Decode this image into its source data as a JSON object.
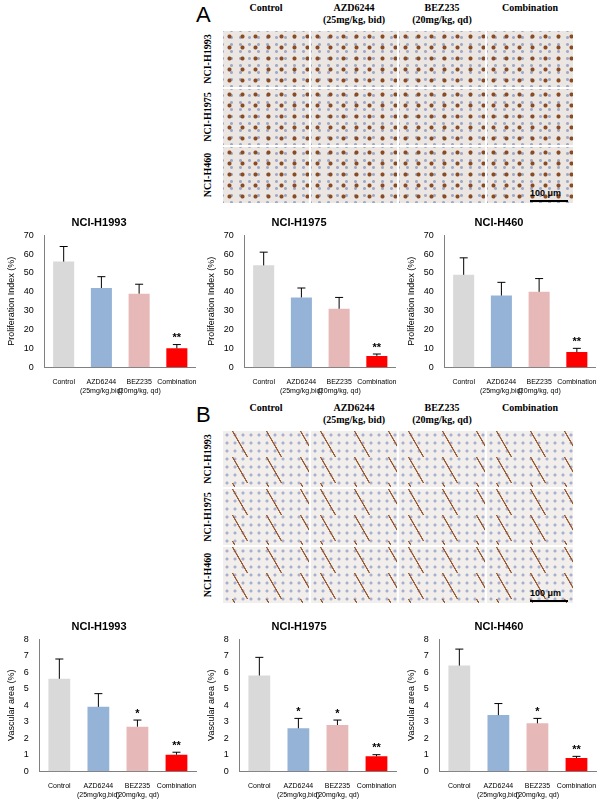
{
  "figure": {
    "panels": [
      {
        "label": "A",
        "columns": [
          "Control",
          "AZD6244 (25mg/kg, bid)",
          "BEZ235 (20mg/kg, qd)",
          "Combination"
        ],
        "rows": [
          "NCI-H1993",
          "NCI-H1975",
          "NCI-H460"
        ],
        "scale_bar": "100 μm"
      },
      {
        "label": "B",
        "columns": [
          "Control",
          "AZD6244 (25mg/kg, bid)",
          "BEZ235 (20mg/kg, qd)",
          "Combination"
        ],
        "rows": [
          "NCI-H1993",
          "NCI-H1975",
          "NCI-H460"
        ],
        "scale_bar": "100 μm"
      }
    ]
  },
  "chart_data": [
    {
      "type": "bar",
      "title": "NCI-H1993",
      "y_label": "Proliferation Index (%)",
      "categories": [
        "Control",
        "AZD6244 (25mg/kg,bid)",
        "BEZ235 (20mg/kg, qd)",
        "Combination"
      ],
      "values": [
        56,
        42,
        39,
        10
      ],
      "errors": [
        8,
        6,
        5,
        2
      ],
      "annotations": [
        null,
        null,
        null,
        "**"
      ],
      "colors": [
        "#d9d9d9",
        "#95b3d7",
        "#e6b9b8",
        "#ff0000"
      ],
      "ylim": [
        0,
        70
      ],
      "yticks": [
        0,
        10,
        20,
        30,
        40,
        50,
        60,
        70
      ],
      "grid": false
    },
    {
      "type": "bar",
      "title": "NCI-H1975",
      "y_label": "Proliferation Index (%)",
      "categories": [
        "Control",
        "AZD6244 (25mg/kg,bid)",
        "BEZ235 (20mg/kg, qd)",
        "Combination"
      ],
      "values": [
        54,
        37,
        31,
        6
      ],
      "errors": [
        7,
        5,
        6,
        1
      ],
      "annotations": [
        null,
        null,
        null,
        "**"
      ],
      "colors": [
        "#d9d9d9",
        "#95b3d7",
        "#e6b9b8",
        "#ff0000"
      ],
      "ylim": [
        0,
        70
      ],
      "yticks": [
        0,
        10,
        20,
        30,
        40,
        50,
        60,
        70
      ],
      "grid": false
    },
    {
      "type": "bar",
      "title": "NCI-H460",
      "y_label": "Proliferation Index (%)",
      "categories": [
        "Control",
        "AZD6244 (25mg/kg,bid)",
        "BEZ235 (20mg/kg, qd)",
        "Combination"
      ],
      "values": [
        49,
        38,
        40,
        8
      ],
      "errors": [
        9,
        7,
        7,
        2
      ],
      "annotations": [
        null,
        null,
        null,
        "**"
      ],
      "colors": [
        "#d9d9d9",
        "#95b3d7",
        "#e6b9b8",
        "#ff0000"
      ],
      "ylim": [
        0,
        70
      ],
      "yticks": [
        0,
        10,
        20,
        30,
        40,
        50,
        60,
        70
      ],
      "grid": false
    },
    {
      "type": "bar",
      "title": "NCI-H1993",
      "y_label": "Vascular area (%)",
      "categories": [
        "Control",
        "AZD6244 (25mg/kg,bid)",
        "BEZ235 (20mg/kg, qd)",
        "Combination"
      ],
      "values": [
        5.6,
        3.9,
        2.7,
        1.0
      ],
      "errors": [
        1.2,
        0.8,
        0.4,
        0.15
      ],
      "annotations": [
        null,
        null,
        "*",
        "**"
      ],
      "colors": [
        "#d9d9d9",
        "#95b3d7",
        "#e6b9b8",
        "#ff0000"
      ],
      "ylim": [
        0,
        8
      ],
      "yticks": [
        0,
        1,
        2,
        3,
        4,
        5,
        6,
        7,
        8
      ],
      "grid": false
    },
    {
      "type": "bar",
      "title": "NCI-H1975",
      "y_label": "Vascular area (%)",
      "categories": [
        "Control",
        "AZD6244 (25mg/kg,bid)",
        "BEZ235 (20mg/kg, qd)",
        "Combination"
      ],
      "values": [
        5.8,
        2.6,
        2.8,
        0.9
      ],
      "errors": [
        1.1,
        0.6,
        0.3,
        0.1
      ],
      "annotations": [
        null,
        "*",
        "*",
        "**"
      ],
      "colors": [
        "#d9d9d9",
        "#95b3d7",
        "#e6b9b8",
        "#ff0000"
      ],
      "ylim": [
        0,
        8
      ],
      "yticks": [
        0,
        1,
        2,
        3,
        4,
        5,
        6,
        7,
        8
      ],
      "grid": false
    },
    {
      "type": "bar",
      "title": "NCI-H460",
      "y_label": "Vascular area (%)",
      "categories": [
        "Control",
        "AZD6244 (25mg/kg,bid)",
        "BEZ235 (20mg/kg, qd)",
        "Combination"
      ],
      "values": [
        6.4,
        3.4,
        2.9,
        0.8
      ],
      "errors": [
        1.0,
        0.7,
        0.3,
        0.1
      ],
      "annotations": [
        null,
        null,
        "*",
        "**"
      ],
      "colors": [
        "#d9d9d9",
        "#95b3d7",
        "#e6b9b8",
        "#ff0000"
      ],
      "ylim": [
        0,
        8
      ],
      "yticks": [
        0,
        1,
        2,
        3,
        4,
        5,
        6,
        7,
        8
      ],
      "grid": false
    }
  ]
}
